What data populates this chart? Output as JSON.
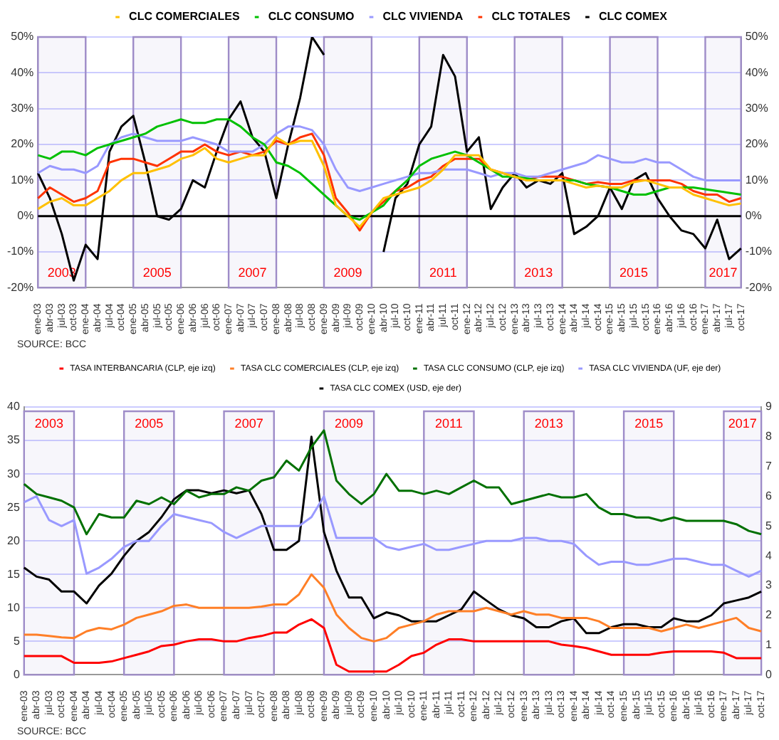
{
  "chart_data": [
    {
      "type": "line",
      "categories": [
        "ene-03",
        "abr-03",
        "jul-03",
        "oct-03",
        "ene-04",
        "abr-04",
        "jul-04",
        "oct-04",
        "ene-05",
        "abr-05",
        "jul-05",
        "oct-05",
        "ene-06",
        "abr-06",
        "jul-06",
        "oct-06",
        "ene-07",
        "abr-07",
        "jul-07",
        "oct-07",
        "ene-08",
        "abr-08",
        "jul-08",
        "oct-08",
        "ene-09",
        "abr-09",
        "jul-09",
        "oct-09",
        "ene-10",
        "abr-10",
        "jul-10",
        "oct-10",
        "ene-11",
        "abr-11",
        "jul-11",
        "oct-11",
        "ene-12",
        "abr-12",
        "jul-12",
        "oct-12",
        "ene-13",
        "abr-13",
        "jul-13",
        "oct-13",
        "ene-14",
        "abr-14",
        "jul-14",
        "oct-14",
        "ene-15",
        "abr-15",
        "jul-15",
        "oct-15",
        "ene-16",
        "abr-16",
        "jul-16",
        "oct-16",
        "ene-17",
        "abr-17",
        "jul-17",
        "oct-17"
      ],
      "series": [
        {
          "name": "CLC COMERCIALES",
          "color": "#ffc000",
          "values": [
            2,
            4,
            5,
            3,
            3,
            5,
            7,
            10,
            12,
            12,
            13,
            14,
            16,
            17,
            19,
            16,
            15,
            16,
            17,
            17,
            22,
            20,
            21,
            21,
            14,
            3,
            0,
            -3,
            1,
            5,
            6,
            7,
            8,
            10,
            13,
            17,
            17,
            17,
            13,
            12,
            11,
            10,
            10,
            10,
            10,
            9,
            8,
            8.5,
            8,
            8,
            9.5,
            10,
            9,
            8,
            8,
            6,
            5,
            4,
            3,
            3.5
          ]
        },
        {
          "name": "CLC CONSUMO",
          "color": "#00c000",
          "values": [
            17,
            16,
            18,
            18,
            17,
            19,
            20,
            21,
            22,
            23,
            25,
            26,
            27,
            26,
            26,
            27,
            27,
            25,
            22,
            20,
            15,
            14,
            12,
            9,
            6,
            3,
            0,
            -1,
            1,
            3,
            7,
            10,
            14,
            16,
            17,
            18,
            17,
            15,
            13,
            11,
            11,
            10.5,
            10,
            10,
            10,
            10,
            9,
            8.5,
            8,
            7,
            6,
            6,
            7,
            8,
            8,
            8,
            7.5,
            7,
            6.5,
            6
          ]
        },
        {
          "name": "CLC VIVIENDA",
          "color": "#9999ff",
          "values": [
            12,
            14,
            13,
            13,
            12,
            14,
            20,
            22,
            23,
            22,
            21,
            21,
            21,
            22,
            21,
            20,
            18,
            18,
            18,
            20,
            23,
            25,
            25,
            24,
            20,
            13,
            8,
            7,
            8,
            9,
            10,
            11,
            12,
            12,
            13,
            13,
            13,
            12,
            11,
            12,
            12,
            11,
            11,
            12,
            13,
            14,
            15,
            17,
            16,
            15,
            15,
            16,
            15,
            15,
            13,
            11,
            10,
            10,
            10,
            10
          ]
        },
        {
          "name": "CLC TOTALES",
          "color": "#ff3300",
          "values": [
            5,
            8,
            6,
            4,
            5,
            7,
            15,
            16,
            16,
            15,
            14,
            16,
            18,
            18,
            20,
            18,
            17,
            18,
            17,
            18,
            21,
            20,
            22,
            23,
            17,
            5,
            1,
            -4,
            1,
            4,
            7,
            8,
            10,
            11,
            14,
            16,
            16,
            16,
            13,
            12,
            11,
            10,
            11,
            11,
            11,
            10,
            9,
            9.5,
            9,
            9,
            10,
            10,
            10,
            10,
            9,
            7,
            6,
            6,
            4,
            5
          ]
        },
        {
          "name": "CLC COMEX",
          "color": "#000000",
          "values": [
            12,
            5,
            -5,
            -18,
            -8,
            -12,
            18,
            25,
            28,
            15,
            0,
            -1,
            2,
            10,
            8,
            18,
            27,
            32,
            22,
            18,
            5,
            20,
            33,
            50,
            45,
            null,
            null,
            null,
            null,
            -10,
            5,
            9,
            20,
            25,
            45,
            39,
            18,
            22,
            2,
            8,
            12,
            8,
            10,
            9,
            12,
            -5,
            -3,
            0,
            8,
            2,
            10,
            12,
            5,
            0,
            -4,
            -5,
            -9,
            -1,
            -12,
            -9
          ]
        }
      ],
      "ylim": [
        -20,
        50
      ],
      "yticks": [
        {
          "value": -20,
          "label": "-20%"
        },
        {
          "value": -10,
          "label": "-10%"
        },
        {
          "value": 0,
          "label": "0%"
        },
        {
          "value": 10,
          "label": "10%"
        },
        {
          "value": 20,
          "label": "20%"
        },
        {
          "value": 30,
          "label": "30%"
        },
        {
          "value": 40,
          "label": "40%"
        },
        {
          "value": 50,
          "label": "50%"
        }
      ],
      "y2lim": [
        -20,
        50
      ],
      "y2ticks": [
        {
          "value": -20,
          "label": "-20%"
        },
        {
          "value": -10,
          "label": "-10%"
        },
        {
          "value": 0,
          "label": "0%"
        },
        {
          "value": 10,
          "label": "10%"
        },
        {
          "value": 20,
          "label": "20%"
        },
        {
          "value": 30,
          "label": "30%"
        },
        {
          "value": 40,
          "label": "40%"
        },
        {
          "value": 50,
          "label": "50%"
        }
      ],
      "ref_lines": [
        {
          "axis": "y",
          "value": 0,
          "color": "#000000"
        }
      ],
      "bands": [
        {
          "axis": "x",
          "from": "ene-03",
          "to": "ene-04",
          "label": "2003",
          "color": "#9e8cc8"
        },
        {
          "axis": "x",
          "from": "ene-05",
          "to": "ene-06",
          "label": "2005",
          "color": "#9e8cc8"
        },
        {
          "axis": "x",
          "from": "ene-07",
          "to": "ene-08",
          "label": "2007",
          "color": "#9e8cc8"
        },
        {
          "axis": "x",
          "from": "ene-09",
          "to": "ene-10",
          "label": "2009",
          "color": "#9e8cc8"
        },
        {
          "axis": "x",
          "from": "ene-11",
          "to": "ene-12",
          "label": "2011",
          "color": "#9e8cc8"
        },
        {
          "axis": "x",
          "from": "ene-13",
          "to": "ene-14",
          "label": "2013",
          "color": "#9e8cc8"
        },
        {
          "axis": "x",
          "from": "ene-15",
          "to": "ene-16",
          "label": "2015",
          "color": "#9e8cc8"
        },
        {
          "axis": "x",
          "from": "ene-17",
          "to": "oct-17",
          "label": "2017",
          "color": "#9e8cc8"
        }
      ],
      "grid": "y",
      "legend": "top",
      "annotations": [
        "SOURCE: BCC"
      ]
    },
    {
      "type": "line",
      "categories": [
        "ene-03",
        "abr-03",
        "jul-03",
        "oct-03",
        "ene-04",
        "abr-04",
        "jul-04",
        "oct-04",
        "ene-05",
        "abr-05",
        "jul-05",
        "oct-05",
        "ene-06",
        "abr-06",
        "jul-06",
        "oct-06",
        "ene-07",
        "abr-07",
        "jul-07",
        "oct-07",
        "ene-08",
        "abr-08",
        "jul-08",
        "oct-08",
        "ene-09",
        "abr-09",
        "jul-09",
        "oct-09",
        "ene-10",
        "abr-10",
        "jul-10",
        "oct-10",
        "ene-11",
        "abr-11",
        "jul-11",
        "oct-11",
        "ene-12",
        "abr-12",
        "jul-12",
        "oct-12",
        "ene-13",
        "abr-13",
        "jul-13",
        "oct-13",
        "ene-14",
        "abr-14",
        "jul-14",
        "oct-14",
        "ene-15",
        "abr-15",
        "jul-15",
        "oct-15",
        "ene-16",
        "abr-16",
        "jul-16",
        "oct-16",
        "ene-17",
        "abr-17",
        "jul-17",
        "oct-17"
      ],
      "series": [
        {
          "name": "TASA INTERBANCARIA (CLP, eje izq)",
          "color": "#ff0000",
          "values": [
            2.8,
            2.8,
            2.8,
            2.8,
            1.8,
            1.8,
            1.8,
            2,
            2.5,
            3,
            3.5,
            4.3,
            4.5,
            5,
            5.3,
            5.3,
            5,
            5,
            5.5,
            5.8,
            6.3,
            6.3,
            7.5,
            8.3,
            7,
            1.5,
            0.5,
            0.5,
            0.5,
            0.5,
            1.5,
            2.8,
            3.3,
            4.5,
            5.3,
            5.3,
            5,
            5,
            5,
            5,
            5,
            5,
            5,
            4.5,
            4.3,
            4,
            3.5,
            3,
            3,
            3,
            3,
            3.3,
            3.5,
            3.5,
            3.5,
            3.5,
            3.3,
            2.5,
            2.5,
            2.5
          ]
        },
        {
          "name": "TASA CLC COMERCIALES (CLP, eje izq)",
          "color": "#ff7f27",
          "values": [
            6,
            6,
            5.8,
            5.6,
            5.5,
            6.5,
            7,
            6.8,
            7.5,
            8.5,
            9,
            9.5,
            10.3,
            10.5,
            10,
            10,
            10,
            10,
            10,
            10.2,
            10.5,
            10.5,
            12,
            15,
            13,
            9,
            7,
            5.5,
            5,
            5.5,
            7,
            7.5,
            8,
            9,
            9.5,
            9.5,
            9.5,
            10,
            9.5,
            9,
            9.5,
            9,
            9,
            8.5,
            8.5,
            8.5,
            8,
            7,
            7,
            7,
            7,
            6.5,
            7,
            7.5,
            7,
            7.5,
            8,
            8.5,
            7,
            6.5
          ]
        },
        {
          "name": "TASA CLC CONSUMO (CLP, eje izq)",
          "color": "#007000",
          "values": [
            28.5,
            27,
            26.5,
            26,
            25,
            21,
            24,
            23.5,
            23.5,
            26,
            25.5,
            26.5,
            25.5,
            27.5,
            26.5,
            27,
            27,
            28,
            27.5,
            29,
            29.5,
            32,
            30.5,
            34,
            36.5,
            29,
            27,
            25.5,
            27,
            30,
            27.5,
            27.5,
            27,
            27.5,
            27,
            28,
            29,
            28,
            28,
            25.5,
            26,
            26.5,
            27,
            26.5,
            26.5,
            27,
            25,
            24,
            24,
            23.5,
            23.5,
            23,
            23.5,
            23,
            23,
            23,
            23,
            22.5,
            21.5,
            21
          ]
        },
        {
          "name": "TASA CLC VIVIENDA (UF, eje der)",
          "color": "#9999ff",
          "axis": "y2",
          "values": [
            5.8,
            6,
            5.2,
            5,
            5.2,
            3.4,
            3.6,
            3.9,
            4.3,
            4.5,
            4.5,
            5,
            5.4,
            5.3,
            5.2,
            5.1,
            4.8,
            4.6,
            4.8,
            5,
            5,
            5,
            5,
            5.3,
            6,
            4.6,
            4.6,
            4.6,
            4.6,
            4.3,
            4.2,
            4.3,
            4.4,
            4.2,
            4.2,
            4.3,
            4.4,
            4.5,
            4.5,
            4.5,
            4.6,
            4.6,
            4.5,
            4.5,
            4.4,
            4,
            3.7,
            3.8,
            3.8,
            3.7,
            3.7,
            3.8,
            3.9,
            3.9,
            3.8,
            3.7,
            3.7,
            3.5,
            3.3,
            3.5
          ]
        },
        {
          "name": "TASA CLC COMEX (USD, eje der)",
          "color": "#000000",
          "axis": "y2",
          "values": [
            3.6,
            3.3,
            3.2,
            2.8,
            2.8,
            2.4,
            3,
            3.4,
            4,
            4.5,
            4.8,
            5.3,
            5.9,
            6.2,
            6.2,
            6.1,
            6.2,
            6.1,
            6.2,
            5.4,
            4.2,
            4.2,
            4.5,
            8,
            4.8,
            3.5,
            2.6,
            2.6,
            1.9,
            2.1,
            2,
            1.8,
            1.8,
            1.8,
            2,
            2.2,
            2.8,
            2.5,
            2.2,
            2,
            1.9,
            1.6,
            1.6,
            1.8,
            1.9,
            1.4,
            1.4,
            1.6,
            1.7,
            1.7,
            1.6,
            1.6,
            1.9,
            1.8,
            1.8,
            2,
            2.4,
            2.5,
            2.6,
            2.8
          ]
        }
      ],
      "ylim": [
        0,
        40
      ],
      "yticks": [
        0,
        5,
        10,
        15,
        20,
        25,
        30,
        35,
        40
      ],
      "y2lim": [
        0,
        9
      ],
      "y2ticks": [
        0,
        1,
        2,
        3,
        4,
        5,
        6,
        7,
        8,
        9
      ],
      "bands": [
        {
          "axis": "x",
          "from": "ene-03",
          "to": "ene-04",
          "label": "2003",
          "color": "#9e8cc8"
        },
        {
          "axis": "x",
          "from": "ene-05",
          "to": "ene-06",
          "label": "2005",
          "color": "#9e8cc8"
        },
        {
          "axis": "x",
          "from": "ene-07",
          "to": "ene-08",
          "label": "2007",
          "color": "#9e8cc8"
        },
        {
          "axis": "x",
          "from": "ene-09",
          "to": "ene-10",
          "label": "2009",
          "color": "#9e8cc8"
        },
        {
          "axis": "x",
          "from": "ene-11",
          "to": "ene-12",
          "label": "2011",
          "color": "#9e8cc8"
        },
        {
          "axis": "x",
          "from": "ene-13",
          "to": "ene-14",
          "label": "2013",
          "color": "#9e8cc8"
        },
        {
          "axis": "x",
          "from": "ene-15",
          "to": "ene-16",
          "label": "2015",
          "color": "#9e8cc8"
        },
        {
          "axis": "x",
          "from": "ene-17",
          "to": "oct-17",
          "label": "2017",
          "color": "#9e8cc8"
        }
      ],
      "grid": "y",
      "legend": "top",
      "annotations": [
        "SOURCE: BCC"
      ]
    }
  ]
}
